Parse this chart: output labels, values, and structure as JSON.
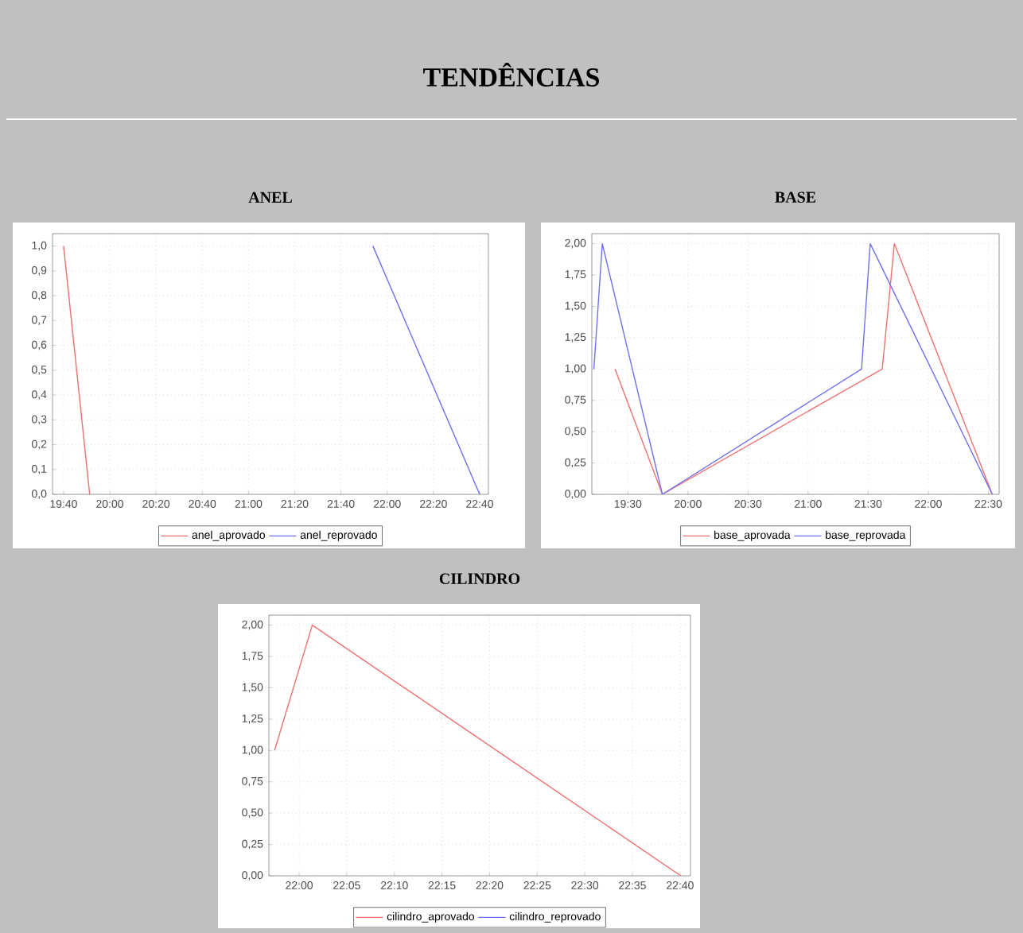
{
  "chart_data": [
    {
      "type": "other",
      "title": "TENDÊNCIAS"
    },
    {
      "type": "line",
      "title": "ANEL",
      "xlim": [
        19.587,
        22.73
      ],
      "ylim": [
        0,
        1.05
      ],
      "xticks": [
        {
          "value": 19.6667,
          "label": "19:40"
        },
        {
          "value": 20,
          "label": "20:00"
        },
        {
          "value": 20.3333,
          "label": "20:20"
        },
        {
          "value": 20.6667,
          "label": "20:40"
        },
        {
          "value": 21,
          "label": "21:00"
        },
        {
          "value": 21.3333,
          "label": "21:20"
        },
        {
          "value": 21.6667,
          "label": "21:40"
        },
        {
          "value": 22,
          "label": "22:00"
        },
        {
          "value": 22.3333,
          "label": "22:20"
        },
        {
          "value": 22.6667,
          "label": "22:40"
        }
      ],
      "yticks": [
        {
          "value": 0,
          "label": "0,0"
        },
        {
          "value": 0.1,
          "label": "0,1"
        },
        {
          "value": 0.2,
          "label": "0,2"
        },
        {
          "value": 0.3,
          "label": "0,3"
        },
        {
          "value": 0.4,
          "label": "0,4"
        },
        {
          "value": 0.5,
          "label": "0,5"
        },
        {
          "value": 0.6,
          "label": "0,6"
        },
        {
          "value": 0.7,
          "label": "0,7"
        },
        {
          "value": 0.8,
          "label": "0,8"
        },
        {
          "value": 0.9,
          "label": "0,9"
        },
        {
          "value": 1,
          "label": "1,0"
        }
      ],
      "grid": true,
      "legend": "bottom",
      "series": [
        {
          "name": "anel_aprovado",
          "color": "#f07070",
          "x": [
            19.667,
            19.855
          ],
          "values": [
            1,
            0
          ]
        },
        {
          "name": "anel_reprovado",
          "color": "#7070f0",
          "x": [
            21.897,
            22.667
          ],
          "values": [
            1,
            0
          ]
        }
      ]
    },
    {
      "type": "line",
      "title": "BASE",
      "xlim": [
        19.2,
        22.59
      ],
      "ylim": [
        0,
        2.08
      ],
      "xticks": [
        {
          "value": 19.5,
          "label": "19:30"
        },
        {
          "value": 20,
          "label": "20:00"
        },
        {
          "value": 20.5,
          "label": "20:30"
        },
        {
          "value": 21,
          "label": "21:00"
        },
        {
          "value": 21.5,
          "label": "21:30"
        },
        {
          "value": 22,
          "label": "22:00"
        },
        {
          "value": 22.5,
          "label": "22:30"
        }
      ],
      "yticks": [
        {
          "value": 0,
          "label": "0,00"
        },
        {
          "value": 0.25,
          "label": "0,25"
        },
        {
          "value": 0.5,
          "label": "0,50"
        },
        {
          "value": 0.75,
          "label": "0,75"
        },
        {
          "value": 1,
          "label": "1,00"
        },
        {
          "value": 1.25,
          "label": "1,25"
        },
        {
          "value": 1.5,
          "label": "1,50"
        },
        {
          "value": 1.75,
          "label": "1,75"
        },
        {
          "value": 2,
          "label": "2,00"
        }
      ],
      "grid": true,
      "legend": "bottom",
      "series": [
        {
          "name": "base_aprovada",
          "color": "#f07070",
          "x": [
            19.393,
            19.787,
            21.617,
            21.718,
            22.533
          ],
          "values": [
            1,
            0,
            1,
            2,
            0
          ]
        },
        {
          "name": "base_reprovada",
          "color": "#7070f0",
          "x": [
            19.217,
            19.287,
            19.787,
            21.445,
            21.517,
            22.533
          ],
          "values": [
            1,
            2,
            0,
            1,
            2,
            0
          ]
        }
      ]
    },
    {
      "type": "line",
      "title": "CILINDRO",
      "xlim": [
        21.947,
        22.685
      ],
      "ylim": [
        0,
        2.08
      ],
      "xticks": [
        {
          "value": 22,
          "label": "22:00"
        },
        {
          "value": 22.0833,
          "label": "22:05"
        },
        {
          "value": 22.1667,
          "label": "22:10"
        },
        {
          "value": 22.25,
          "label": "22:15"
        },
        {
          "value": 22.3333,
          "label": "22:20"
        },
        {
          "value": 22.4167,
          "label": "22:25"
        },
        {
          "value": 22.5,
          "label": "22:30"
        },
        {
          "value": 22.5833,
          "label": "22:35"
        },
        {
          "value": 22.6667,
          "label": "22:40"
        }
      ],
      "yticks": [
        {
          "value": 0,
          "label": "0,00"
        },
        {
          "value": 0.25,
          "label": "0,25"
        },
        {
          "value": 0.5,
          "label": "0,50"
        },
        {
          "value": 0.75,
          "label": "0,75"
        },
        {
          "value": 1,
          "label": "1,00"
        },
        {
          "value": 1.25,
          "label": "1,25"
        },
        {
          "value": 1.5,
          "label": "1,50"
        },
        {
          "value": 1.75,
          "label": "1,75"
        },
        {
          "value": 2,
          "label": "2,00"
        }
      ],
      "grid": true,
      "legend": "bottom",
      "series": [
        {
          "name": "cilindro_aprovado",
          "color": "#f07070",
          "x": [
            21.957,
            22.023,
            22.668
          ],
          "values": [
            1,
            2,
            0
          ]
        },
        {
          "name": "cilindro_reprovado",
          "color": "#7070f0"
        }
      ]
    }
  ]
}
